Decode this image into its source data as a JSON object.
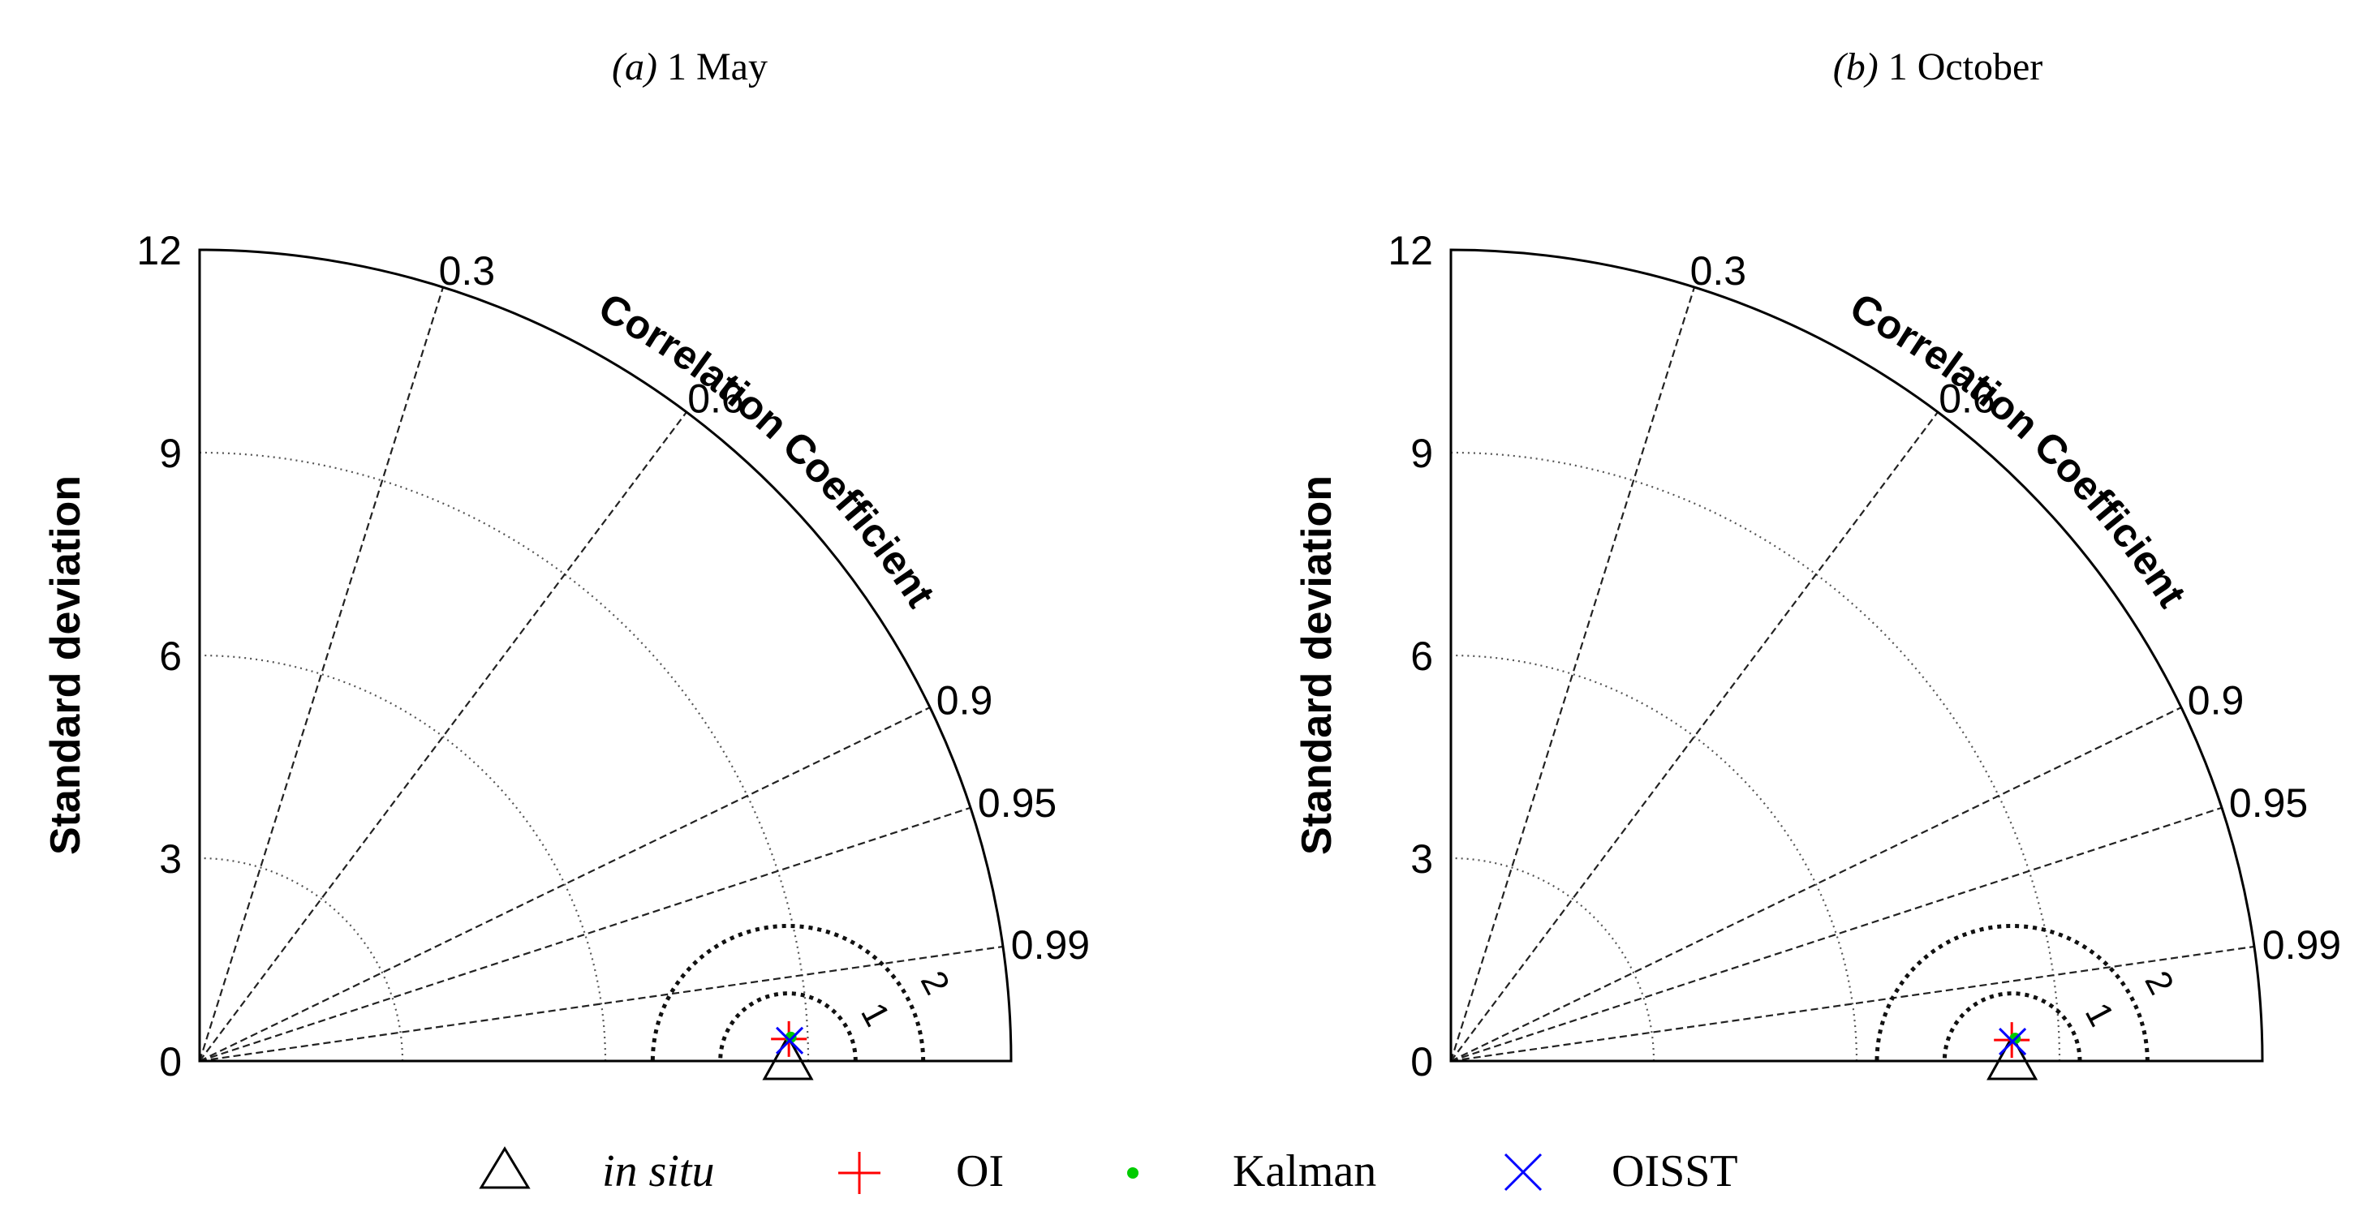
{
  "chart_data": [
    {
      "type": "taylor",
      "panel": "(a)",
      "title_text": " 1 May",
      "ylabel": "Standard deviation",
      "arc_label": "Correlation Coefficient",
      "radial_ticks": [
        0,
        3,
        6,
        9,
        12
      ],
      "radial_tick_labels": [
        "0",
        "3",
        "6",
        "9",
        "12"
      ],
      "correlation_ticks": [
        0.3,
        0.6,
        0.9,
        0.95,
        0.99
      ],
      "correlation_tick_labels": [
        "0.3",
        "0.6",
        "0.9",
        "0.95",
        "0.99"
      ],
      "rms_contours": [
        1,
        2
      ],
      "rms_contour_labels": [
        "1",
        "2"
      ],
      "reference_std": 8.7,
      "points": [
        {
          "name": "OI",
          "std": 8.72,
          "corr": 0.9993
        },
        {
          "name": "Kalman",
          "std": 8.75,
          "corr": 0.9992
        },
        {
          "name": "OISST",
          "std": 8.73,
          "corr": 0.9994
        }
      ]
    },
    {
      "type": "taylor",
      "panel": "(b)",
      "title_text": " 1 October",
      "ylabel": "Standard deviation",
      "arc_label": "Correlation Coefficient",
      "radial_ticks": [
        0,
        3,
        6,
        9,
        12
      ],
      "radial_tick_labels": [
        "0",
        "3",
        "6",
        "9",
        "12"
      ],
      "correlation_ticks": [
        0.3,
        0.6,
        0.9,
        0.95,
        0.99
      ],
      "correlation_tick_labels": [
        "0.3",
        "0.6",
        "0.9",
        "0.95",
        "0.99"
      ],
      "rms_contours": [
        1,
        2
      ],
      "rms_contour_labels": [
        "1",
        "2"
      ],
      "reference_std": 8.3,
      "points": [
        {
          "name": "OI",
          "std": 8.3,
          "corr": 0.9993
        },
        {
          "name": "Kalman",
          "std": 8.35,
          "corr": 0.9992
        },
        {
          "name": "OISST",
          "std": 8.31,
          "corr": 0.9994
        }
      ]
    }
  ],
  "legend": [
    {
      "label": "in situ",
      "marker": "triangle",
      "color": "#000000"
    },
    {
      "label": "OI",
      "marker": "plus",
      "color": "#ff0000"
    },
    {
      "label": "Kalman",
      "marker": "dot",
      "color": "#00cc00"
    },
    {
      "label": "OISST",
      "marker": "cross",
      "color": "#0000ff"
    }
  ]
}
